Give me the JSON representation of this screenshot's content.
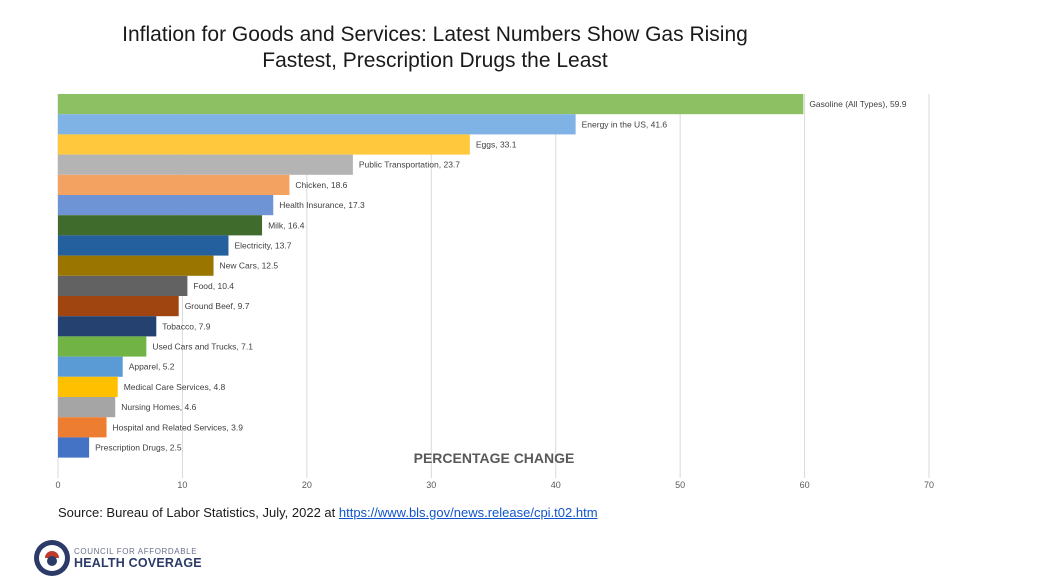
{
  "chart_data": {
    "type": "bar",
    "orientation": "horizontal",
    "title_lines": [
      "Inflation for Goods and Services: Latest Numbers Show Gas Rising",
      "Fastest, Prescription Drugs the Least"
    ],
    "xlabel": "PERCENTAGE CHANGE",
    "xlim": [
      0,
      70
    ],
    "xticks": [
      "0",
      "10",
      "20",
      "30",
      "40",
      "50",
      "60",
      "70"
    ],
    "grid": "vertical",
    "categories": [
      "Gasoline (All Types)",
      "Energy in the US",
      "Eggs",
      "Public Transportation",
      "Chicken",
      "Health Insurance",
      "Milk",
      "Electricity",
      "New Cars",
      "Food",
      "Ground Beef",
      "Tobacco",
      "Used Cars and Trucks",
      "Apparel",
      "Medical Care Services",
      "Nursing Homes",
      "Hospital and Related Services",
      "Prescription Drugs"
    ],
    "values": [
      59.9,
      41.6,
      33.1,
      23.7,
      18.6,
      17.3,
      16.4,
      13.7,
      12.5,
      10.4,
      9.7,
      7.9,
      7.1,
      5.2,
      4.8,
      4.6,
      3.9,
      2.5
    ],
    "data_labels": [
      "Gasoline (All Types), 59.9",
      "Energy in the US, 41.6",
      "Eggs, 33.1",
      "Public Transportation, 23.7",
      "Chicken, 18.6",
      "Health Insurance, 17.3",
      "Milk, 16.4",
      "Electricity, 13.7",
      "New Cars, 12.5",
      "Food, 10.4",
      "Ground Beef, 9.7",
      "Tobacco, 7.9",
      "Used Cars and Trucks, 7.1",
      "Apparel, 5.2",
      "Medical Care Services, 4.8",
      "Nursing Homes, 4.6",
      "Hospital and Related Services, 3.9",
      "Prescription Drugs, 2.5"
    ],
    "colors": [
      "#8cc063",
      "#7fb2e5",
      "#ffc83d",
      "#b4b4b4",
      "#f4a261",
      "#6f94d6",
      "#3f6b2c",
      "#24609e",
      "#9a7600",
      "#626262",
      "#a0450f",
      "#25416f",
      "#72b345",
      "#5b9bd5",
      "#ffc000",
      "#a5a5a5",
      "#ed7d31",
      "#4472c4"
    ]
  },
  "source": {
    "text": "Source: Bureau of Labor Statistics, July, 2022 at ",
    "link": "https://www.bls.gov/news.release/cpi.t02.htm"
  },
  "logo": {
    "line1": "COUNCIL FOR AFFORDABLE",
    "line2": "HEALTH COVERAGE"
  }
}
